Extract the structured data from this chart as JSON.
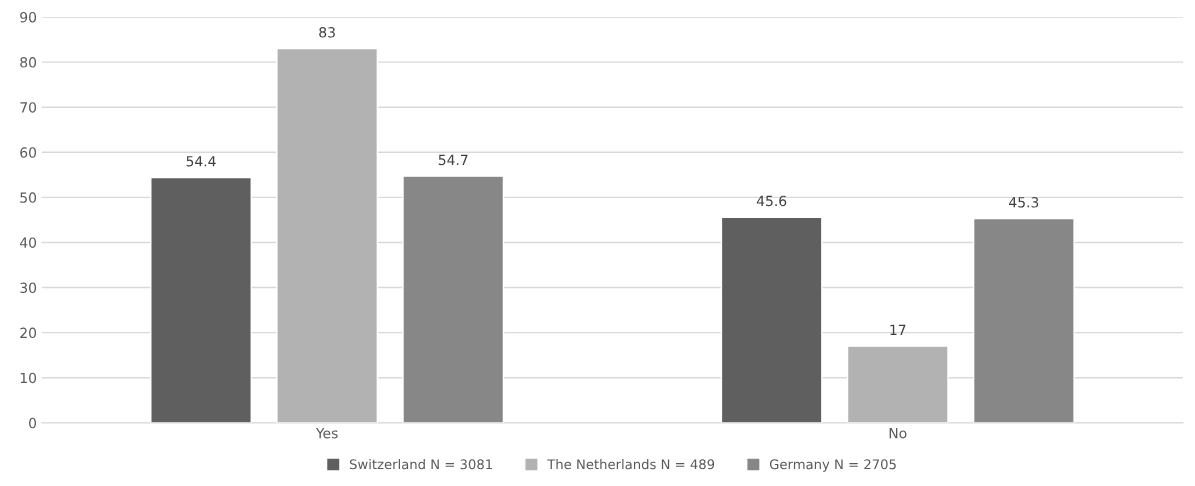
{
  "chart_data": {
    "type": "bar",
    "categories": [
      "Yes",
      "No"
    ],
    "series": [
      {
        "name": "Switzerland N = 3081",
        "color": "#5f5f5f",
        "values": [
          54.4,
          45.6
        ]
      },
      {
        "name": "The Netherlands N = 489",
        "color": "#b2b2b2",
        "values": [
          83,
          17
        ]
      },
      {
        "name": "Germany N = 2705",
        "color": "#878787",
        "values": [
          54.7,
          45.3
        ]
      }
    ],
    "ylim": [
      0,
      90
    ],
    "yticks": [
      0,
      10,
      20,
      30,
      40,
      50,
      60,
      70,
      80,
      90
    ],
    "grid": "y",
    "legend": "bottom",
    "data_labels": true
  }
}
